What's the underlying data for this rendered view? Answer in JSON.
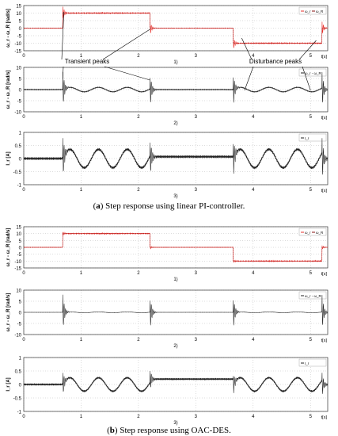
{
  "captions": [
    {
      "label": "a",
      "text": "Step response using linear PI-controller."
    },
    {
      "label": "b",
      "text": "Step response using OAC-DES."
    }
  ],
  "annotations": {
    "transient": "Transient peaks",
    "disturbance": "Disturbance peaks"
  },
  "chart_data": [
    {
      "type": "line",
      "figure": "a",
      "sub_label": "1)",
      "ylabel": "ω_r - ω_R [rad/s]",
      "xlabel": "t[s]",
      "xlim": [
        0,
        5.3
      ],
      "ylim": [
        -15,
        15
      ],
      "yticks": [
        -15,
        -10,
        -5,
        0,
        5,
        10,
        15
      ],
      "xticks": [
        0,
        1,
        2,
        3,
        4,
        5
      ],
      "legend": [
        "ω_r",
        "ω_R"
      ],
      "legend_position": "top-right",
      "colors": {
        "omega_r": "#e8302c",
        "omega_R": "#8a1010"
      },
      "series": [
        {
          "name": "ω_R",
          "x": [
            0,
            0.68,
            0.68,
            2.2,
            2.2,
            3.65,
            3.65,
            5.2,
            5.2,
            5.3
          ],
          "y": [
            0,
            0,
            10,
            10,
            0,
            0,
            -10,
            -10,
            0,
            0
          ]
        }
      ]
    },
    {
      "type": "line",
      "figure": "a",
      "sub_label": "2)",
      "ylabel": "ω_r - ω_R [rad/s]",
      "xlabel": "t[s]",
      "xlim": [
        0,
        5.3
      ],
      "ylim": [
        -10,
        10
      ],
      "yticks": [
        -10,
        -5,
        0,
        5,
        10
      ],
      "xticks": [
        0,
        1,
        2,
        3,
        4,
        5
      ],
      "legend": [
        "ω_r - ω_R"
      ],
      "legend_position": "top-right",
      "series": [
        {
          "name": "ω_r - ω_R",
          "spikes": [
            0.68,
            2.2,
            3.65,
            5.2
          ],
          "spike_amplitude": 9,
          "osc_amplitude": 1
        }
      ]
    },
    {
      "type": "line",
      "figure": "a",
      "sub_label": "3)",
      "ylabel": "I_r [A]",
      "xlabel": "t[s]",
      "xlim": [
        0,
        5.3
      ],
      "ylim": [
        -1,
        1
      ],
      "yticks": [
        -1,
        -0.5,
        0,
        0.5,
        1
      ],
      "xticks": [
        0,
        1,
        2,
        3,
        4,
        5
      ],
      "legend": [
        "I_r"
      ],
      "legend_position": "top-right",
      "series": [
        {
          "name": "I_r",
          "spikes": [
            0.68,
            2.2,
            3.65,
            5.2
          ],
          "spike_amplitude": 0.9,
          "osc_amplitude": 0.35
        }
      ]
    },
    {
      "type": "line",
      "figure": "b",
      "sub_label": "1)",
      "ylabel": "ω_r - ω_R [rad/s]",
      "xlabel": "t[s]",
      "xlim": [
        0,
        5.3
      ],
      "ylim": [
        -15,
        15
      ],
      "yticks": [
        -15,
        -10,
        -5,
        0,
        5,
        10,
        15
      ],
      "xticks": [
        0,
        1,
        2,
        3,
        4,
        5
      ],
      "legend": [
        "ω_r",
        "ω_R"
      ],
      "legend_position": "top-right",
      "series": [
        {
          "name": "ω_R",
          "x": [
            0,
            0.68,
            0.68,
            2.2,
            2.2,
            3.65,
            3.65,
            5.2,
            5.2,
            5.3
          ],
          "y": [
            0,
            0,
            10,
            10,
            0,
            0,
            -10,
            -10,
            0,
            0
          ]
        }
      ]
    },
    {
      "type": "line",
      "figure": "b",
      "sub_label": "2)",
      "ylabel": "ω_r - ω_R [rad/s]",
      "xlabel": "t[s]",
      "xlim": [
        0,
        5.3
      ],
      "ylim": [
        -10,
        10
      ],
      "yticks": [
        -10,
        -5,
        0,
        5,
        10
      ],
      "xticks": [
        0,
        1,
        2,
        3,
        4,
        5
      ],
      "legend": [
        "ω_r - ω_R"
      ],
      "legend_position": "top-right",
      "series": [
        {
          "name": "ω_r - ω_R",
          "spikes": [
            0.68,
            2.2,
            3.65,
            5.2
          ],
          "spike_amplitude": 9,
          "osc_amplitude": 0.2
        }
      ]
    },
    {
      "type": "line",
      "figure": "b",
      "sub_label": "3)",
      "ylabel": "I_r [A]",
      "xlabel": "t[s]",
      "xlim": [
        0,
        5.3
      ],
      "ylim": [
        -1,
        1
      ],
      "yticks": [
        -1,
        -0.5,
        0,
        0.5,
        1
      ],
      "xticks": [
        0,
        1,
        2,
        3,
        4,
        5
      ],
      "legend": [
        "I_r"
      ],
      "legend_position": "top-right",
      "series": [
        {
          "name": "I_r",
          "spikes": [
            0.68,
            2.2,
            3.65,
            5.2
          ],
          "spike_amplitude": 0.5,
          "osc_amplitude": 0.25
        }
      ]
    }
  ]
}
